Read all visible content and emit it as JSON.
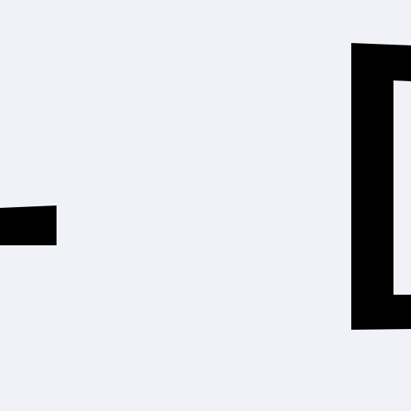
{
  "colors": {
    "background": "#f0f2f7",
    "ink": "#000000"
  },
  "shapes": {
    "left_mark": "dash-glyph-fragment",
    "right_mark": "bracket-glyph-fragment"
  }
}
